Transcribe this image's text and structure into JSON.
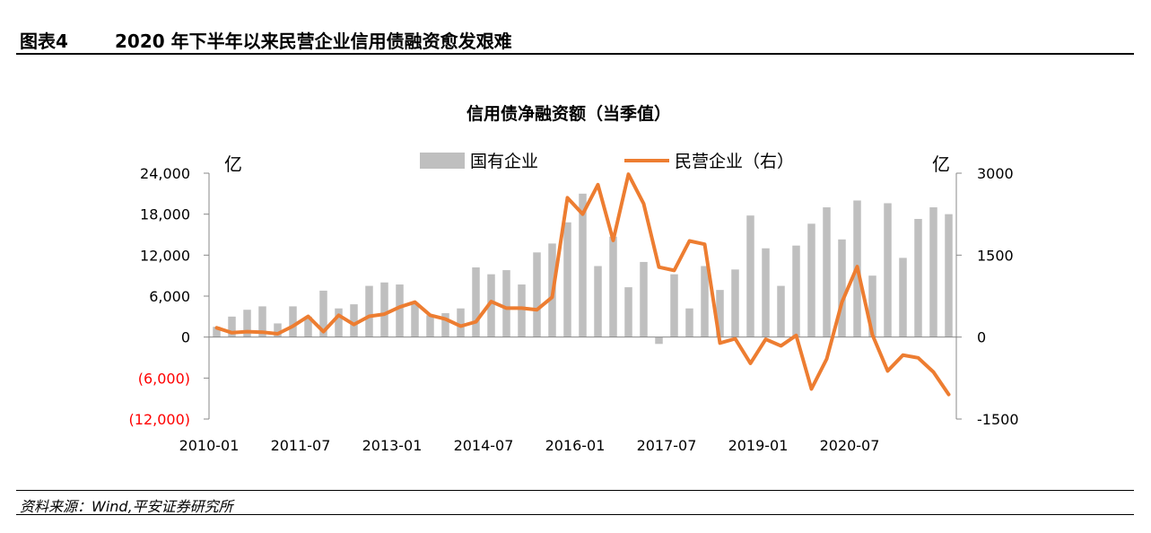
{
  "header": {
    "figure_number": "图表4",
    "figure_title": "2020 年下半年以来民营企业信用债融资愈发艰难"
  },
  "footer": {
    "source": "资料来源：Wind,平安证券研究所"
  },
  "colors": {
    "bar": "#bfbfbf",
    "line": "#ed7d31",
    "negative_label": "#ff0000",
    "axis": "#888888"
  },
  "chart_data": {
    "type": "bar",
    "title": "信用债净融资额（当季值）",
    "legend_position": "top",
    "grid": false,
    "left_unit": "亿",
    "right_unit": "亿",
    "x_tick_labels": [
      "2010-01",
      "2011-07",
      "2013-01",
      "2014-07",
      "2016-01",
      "2017-07",
      "2019-01",
      "2020-07"
    ],
    "x_tick_start_index": [
      0,
      6,
      12,
      18,
      24,
      30,
      36,
      42
    ],
    "left_axis": {
      "ylim": [
        -12000,
        24000
      ],
      "ticks": [
        24000,
        18000,
        12000,
        6000,
        0,
        -6000,
        -12000
      ],
      "tick_labels": [
        "24,000",
        "18,000",
        "12,000",
        "6,000",
        "0",
        "(6,000)",
        "(12,000)"
      ]
    },
    "right_axis": {
      "ylim": [
        -1500,
        3000
      ],
      "ticks": [
        3000,
        1500,
        0,
        -1500
      ],
      "tick_labels": [
        "3000",
        "1500",
        "0",
        "-1500"
      ]
    },
    "x": [
      "2010-01",
      "2010-04",
      "2010-07",
      "2010-10",
      "2011-01",
      "2011-04",
      "2011-07",
      "2011-10",
      "2012-01",
      "2012-04",
      "2012-07",
      "2012-10",
      "2013-01",
      "2013-04",
      "2013-07",
      "2013-10",
      "2014-01",
      "2014-04",
      "2014-07",
      "2014-10",
      "2015-01",
      "2015-04",
      "2015-07",
      "2015-10",
      "2016-01",
      "2016-04",
      "2016-07",
      "2016-10",
      "2017-01",
      "2017-04",
      "2017-07",
      "2017-10",
      "2018-01",
      "2018-04",
      "2018-07",
      "2018-10",
      "2019-01",
      "2019-04",
      "2019-07",
      "2019-10",
      "2020-01",
      "2020-04",
      "2020-07",
      "2020-10",
      "2021-01",
      "2021-04",
      "2021-07",
      "2021-10",
      "2022-01"
    ],
    "series": [
      {
        "name": "国有企业",
        "axis": "left",
        "kind": "bar",
        "values": [
          1500,
          3000,
          4000,
          4500,
          2000,
          4500,
          3000,
          6800,
          4200,
          4800,
          7500,
          8000,
          7700,
          5000,
          3200,
          3500,
          4200,
          10200,
          9200,
          9800,
          7700,
          12400,
          13700,
          16800,
          21000,
          10400,
          14700,
          7300,
          11000,
          -1000,
          9200,
          4200,
          10400,
          6900,
          9900,
          17800,
          13000,
          7500,
          13400,
          16600,
          19000,
          14300,
          20000,
          9000,
          19600,
          11600,
          17300,
          19000,
          18000
        ]
      },
      {
        "name": "民营企业（右）",
        "axis": "right",
        "kind": "line",
        "values": [
          170,
          80,
          100,
          90,
          60,
          200,
          380,
          100,
          400,
          230,
          380,
          420,
          550,
          640,
          400,
          330,
          200,
          280,
          650,
          530,
          530,
          500,
          730,
          2550,
          2250,
          2790,
          1770,
          2980,
          2440,
          1280,
          1220,
          1760,
          1700,
          -110,
          -30,
          -480,
          -40,
          -160,
          30,
          -950,
          -400,
          640,
          1290,
          40,
          -620,
          -330,
          -380,
          -640,
          -1050
        ]
      }
    ]
  }
}
